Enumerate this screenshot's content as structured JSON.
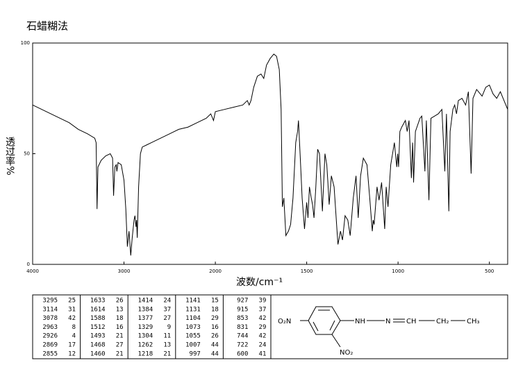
{
  "chart_data": {
    "type": "line",
    "title": "石蜡糊法",
    "xlabel": "波数/cm⁻¹",
    "ylabel": "透过率%",
    "color": "#000000",
    "xlim": [
      4000,
      400
    ],
    "ylim": [
      0,
      100
    ],
    "xbreak": 2000,
    "xticks": [
      4000,
      3000,
      2000,
      1500,
      1000,
      500
    ],
    "yticks": [
      0,
      50,
      100
    ],
    "x": [
      4000,
      3800,
      3600,
      3500,
      3400,
      3320,
      3305,
      3295,
      3285,
      3250,
      3200,
      3150,
      3125,
      3114,
      3100,
      3085,
      3078,
      3065,
      3030,
      3000,
      2980,
      2963,
      2945,
      2926,
      2910,
      2890,
      2880,
      2869,
      2862,
      2855,
      2840,
      2820,
      2800,
      2750,
      2700,
      2600,
      2500,
      2400,
      2300,
      2200,
      2100,
      2050,
      2020,
      2000,
      1950,
      1900,
      1850,
      1825,
      1815,
      1805,
      1790,
      1770,
      1750,
      1735,
      1720,
      1700,
      1680,
      1665,
      1650,
      1640,
      1633,
      1625,
      1614,
      1600,
      1588,
      1575,
      1560,
      1550,
      1545,
      1535,
      1525,
      1512,
      1500,
      1493,
      1485,
      1475,
      1468,
      1460,
      1450,
      1440,
      1430,
      1414,
      1400,
      1390,
      1384,
      1377,
      1365,
      1350,
      1329,
      1315,
      1304,
      1290,
      1275,
      1262,
      1245,
      1230,
      1218,
      1205,
      1190,
      1170,
      1155,
      1141,
      1136,
      1131,
      1115,
      1104,
      1090,
      1073,
      1065,
      1055,
      1040,
      1020,
      1007,
      1002,
      997,
      990,
      980,
      960,
      950,
      940,
      927,
      920,
      915,
      905,
      880,
      870,
      853,
      845,
      831,
      820,
      800,
      780,
      760,
      744,
      735,
      722,
      715,
      700,
      690,
      680,
      670,
      650,
      630,
      615,
      600,
      590,
      570,
      540,
      520,
      500,
      480,
      460,
      440,
      420,
      400
    ],
    "values": [
      72,
      68,
      64,
      61,
      59,
      57,
      55,
      25,
      44,
      47,
      49,
      50,
      48,
      31,
      44,
      45,
      42,
      46,
      45,
      38,
      25,
      8,
      15,
      4,
      12,
      20,
      22,
      17,
      20,
      12,
      35,
      50,
      53,
      54,
      55,
      57,
      59,
      61,
      62,
      64,
      66,
      68,
      65,
      69,
      70,
      71,
      72,
      74,
      72,
      74,
      80,
      85,
      86,
      84,
      90,
      93,
      95,
      94,
      88,
      70,
      26,
      30,
      13,
      15,
      18,
      30,
      55,
      60,
      65,
      48,
      30,
      16,
      28,
      21,
      35,
      30,
      27,
      21,
      35,
      52,
      50,
      24,
      50,
      45,
      37,
      27,
      40,
      35,
      9,
      15,
      11,
      22,
      20,
      13,
      30,
      40,
      21,
      40,
      48,
      45,
      30,
      15,
      20,
      18,
      35,
      29,
      37,
      16,
      35,
      26,
      45,
      55,
      44,
      50,
      44,
      60,
      62,
      65,
      60,
      65,
      39,
      55,
      37,
      60,
      66,
      67,
      42,
      65,
      29,
      66,
      67,
      68,
      70,
      42,
      68,
      24,
      60,
      70,
      72,
      68,
      74,
      75,
      72,
      78,
      41,
      75,
      79,
      76,
      80,
      81,
      77,
      75,
      78,
      74,
      70
    ]
  },
  "peak_table": {
    "columns": [
      [
        [
          3295,
          25
        ],
        [
          3114,
          31
        ],
        [
          3078,
          42
        ],
        [
          2963,
          8
        ],
        [
          2926,
          4
        ],
        [
          2869,
          17
        ],
        [
          2855,
          12
        ]
      ],
      [
        [
          1633,
          26
        ],
        [
          1614,
          13
        ],
        [
          1588,
          18
        ],
        [
          1512,
          16
        ],
        [
          1493,
          21
        ],
        [
          1468,
          27
        ],
        [
          1460,
          21
        ]
      ],
      [
        [
          1414,
          24
        ],
        [
          1384,
          37
        ],
        [
          1377,
          27
        ],
        [
          1329,
          9
        ],
        [
          1304,
          11
        ],
        [
          1262,
          13
        ],
        [
          1218,
          21
        ]
      ],
      [
        [
          1141,
          15
        ],
        [
          1131,
          18
        ],
        [
          1104,
          29
        ],
        [
          1073,
          16
        ],
        [
          1055,
          26
        ],
        [
          1007,
          44
        ],
        [
          997,
          44
        ]
      ],
      [
        [
          927,
          39
        ],
        [
          915,
          37
        ],
        [
          853,
          42
        ],
        [
          831,
          29
        ],
        [
          744,
          42
        ],
        [
          722,
          24
        ],
        [
          600,
          41
        ]
      ]
    ]
  },
  "structure": {
    "labels": [
      "O₂N",
      "NH",
      "N",
      "CH",
      "CH₂",
      "CH₃",
      "NO₂"
    ]
  }
}
